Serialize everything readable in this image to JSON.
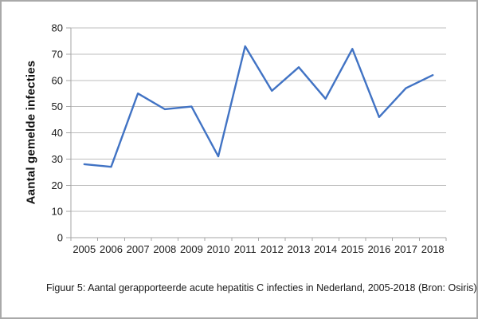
{
  "figure": {
    "caption": "Figuur 5: Aantal gerapporteerde acute hepatitis C infecties in Nederland, 2005-2018 (Bron: Osiris)"
  },
  "colors": {
    "line": "#4173C4",
    "gridline": "#BDBDBD",
    "axis": "#A6A6A6",
    "text": "#1A1A1A",
    "border": "#A9A9A9",
    "background": "#FFFFFF"
  },
  "chart_data": {
    "type": "line",
    "title": "",
    "xlabel": "",
    "ylabel": "Aantal gemelde infecties",
    "categories": [
      "2005",
      "2006",
      "2007",
      "2008",
      "2009",
      "2010",
      "2011",
      "2012",
      "2013",
      "2014",
      "2015",
      "2016",
      "2017",
      "2018"
    ],
    "series": [
      {
        "name": "Aantal gemelde infecties",
        "values": [
          28,
          27,
          55,
          49,
          50,
          31,
          73,
          56,
          65,
          53,
          72,
          46,
          57,
          62
        ]
      }
    ],
    "ylim": [
      0,
      80
    ],
    "ytick_interval": 10,
    "grid": true,
    "legend": false,
    "marker": "none"
  }
}
